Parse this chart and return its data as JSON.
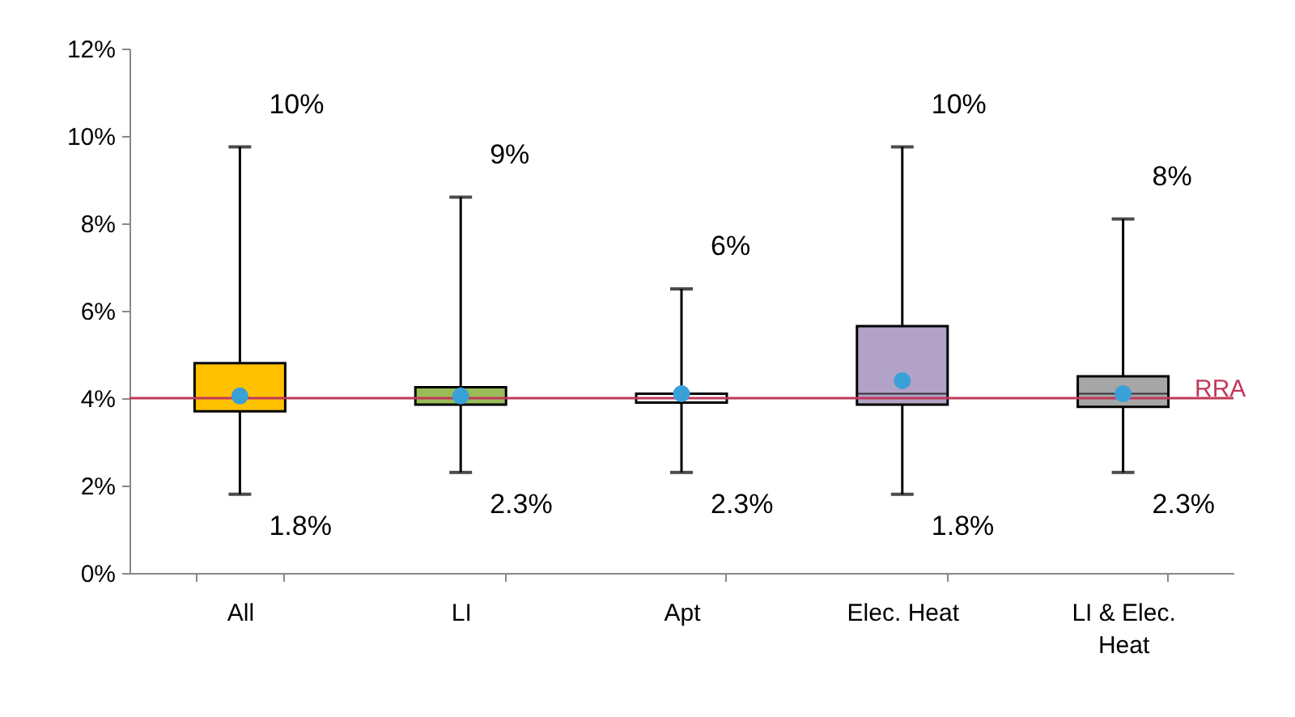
{
  "chart_data": {
    "type": "box",
    "categories": [
      "All",
      "LI",
      "Apt",
      "Elec. Heat",
      "LI & Elec. Heat"
    ],
    "colors": [
      "#ffc000",
      "#9bbb59",
      "#ffffff",
      "#b3a2c7",
      "#a6a6a6"
    ],
    "boxes": [
      {
        "low": 1.8,
        "q1": 3.7,
        "median": 4.0,
        "q3": 4.8,
        "high": 9.75,
        "mean": 4.05
      },
      {
        "low": 2.3,
        "q1": 3.85,
        "median": 4.0,
        "q3": 4.25,
        "high": 8.6,
        "mean": 4.05
      },
      {
        "low": 2.3,
        "q1": 3.9,
        "median": 4.0,
        "q3": 4.1,
        "high": 6.5,
        "mean": 4.1
      },
      {
        "low": 1.8,
        "q1": 3.85,
        "median": 4.1,
        "q3": 5.65,
        "high": 9.75,
        "mean": 4.4
      },
      {
        "low": 2.3,
        "q1": 3.8,
        "median": 4.1,
        "q3": 4.5,
        "high": 8.1,
        "mean": 4.1
      }
    ],
    "ylim": [
      0,
      12
    ],
    "yticks": [
      {
        "value": 0,
        "label": "0%"
      },
      {
        "value": 2,
        "label": "2%"
      },
      {
        "value": 4,
        "label": "4%"
      },
      {
        "value": 6,
        "label": "6%"
      },
      {
        "value": 8,
        "label": "8%"
      },
      {
        "value": 10,
        "label": "10%"
      },
      {
        "value": 12,
        "label": "12%"
      }
    ],
    "ref_lines": [
      {
        "axis": "y",
        "value": 4,
        "label": "RRA",
        "color": "#c0395a"
      }
    ],
    "annotations": [
      {
        "text": "10%",
        "x": "All",
        "y": 9.75
      },
      {
        "text": "1.8%",
        "x": "All",
        "y": 1.8
      },
      {
        "text": "9%",
        "x": "LI",
        "y": 8.6
      },
      {
        "text": "2.3%",
        "x": "LI",
        "y": 2.3
      },
      {
        "text": "6%",
        "x": "Apt",
        "y": 6.5
      },
      {
        "text": "2.3%",
        "x": "Apt",
        "y": 2.3
      },
      {
        "text": "10%",
        "x": "Elec. Heat",
        "y": 9.75
      },
      {
        "text": "1.8%",
        "x": "Elec. Heat",
        "y": 1.8
      },
      {
        "text": "8%",
        "x": "LI & Elec. Heat",
        "y": 8.1
      },
      {
        "text": "2.3%",
        "x": "LI & Elec. Heat",
        "y": 2.3
      }
    ],
    "marker": "circle",
    "grid": false
  }
}
